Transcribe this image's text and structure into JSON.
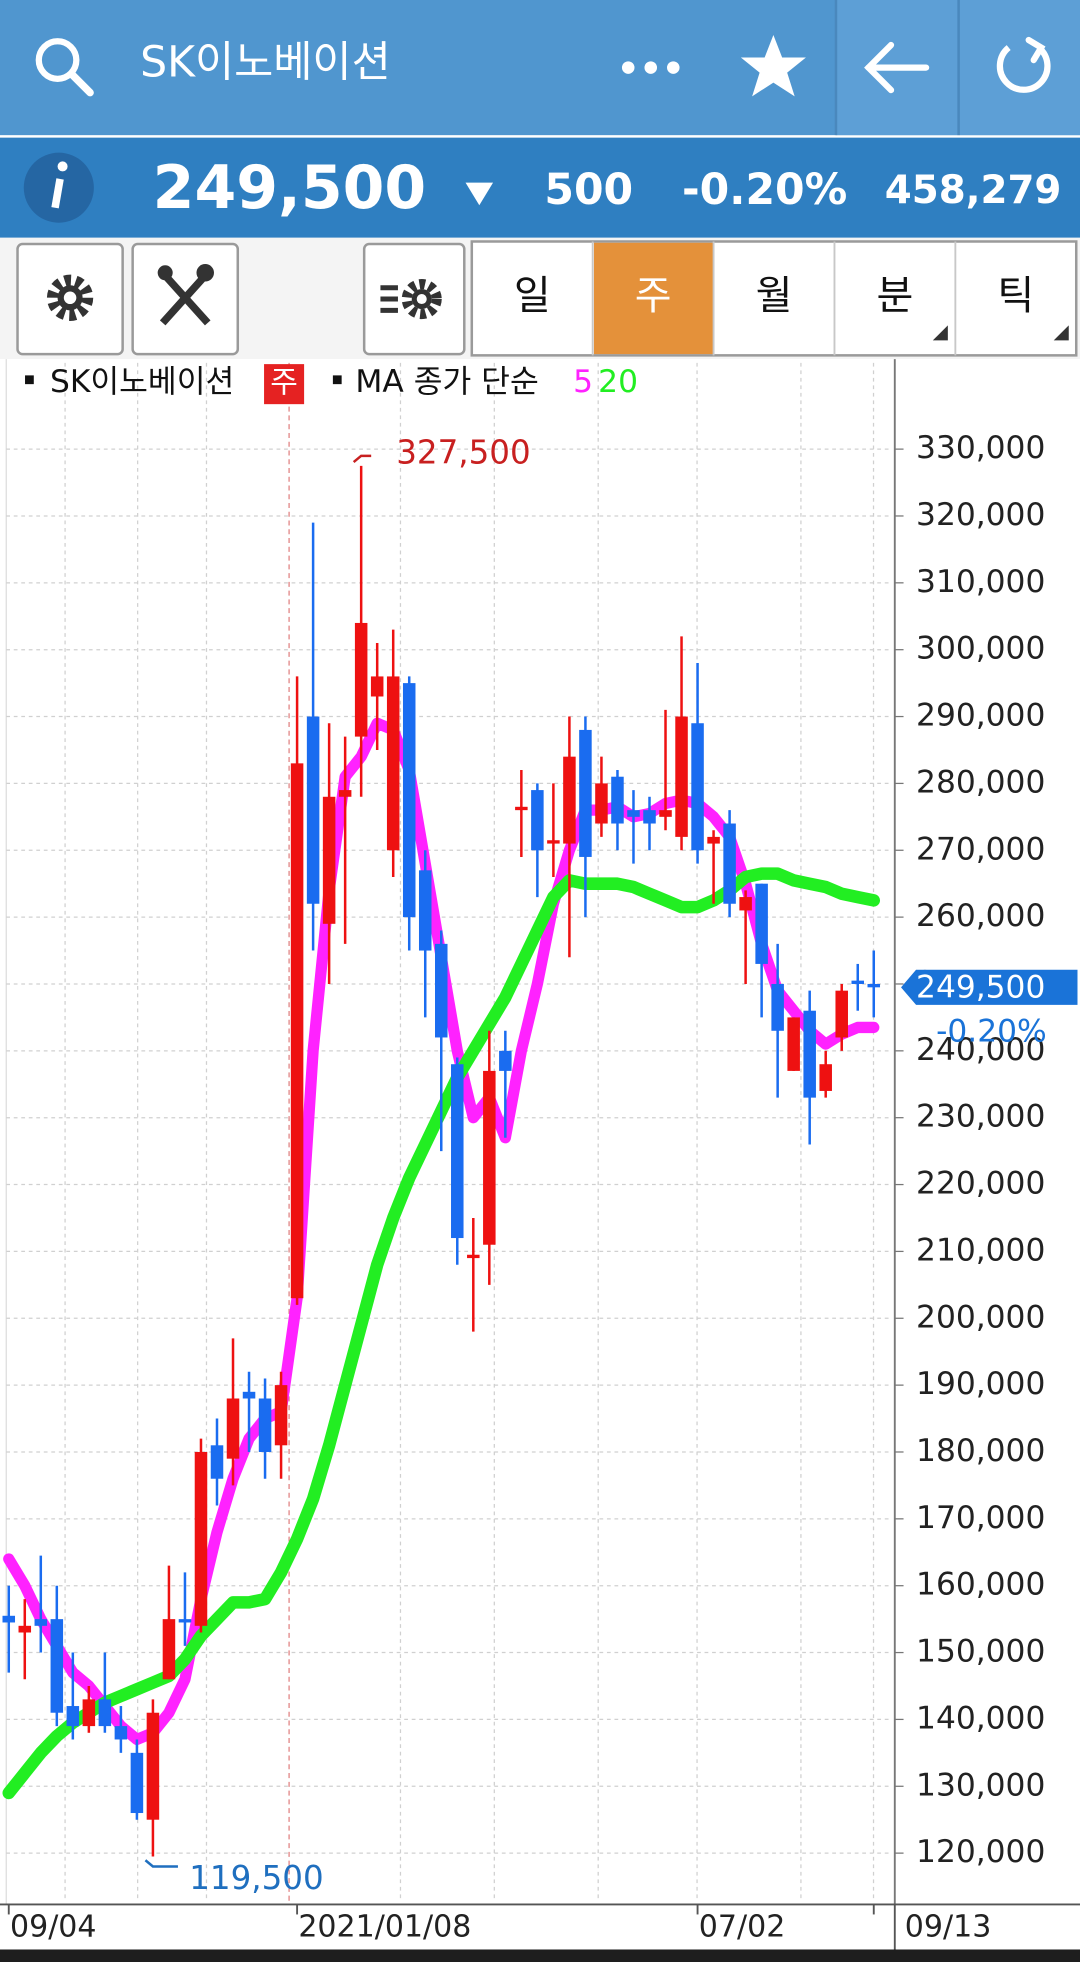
{
  "header": {
    "title": "SK이노베이션",
    "price": "249,500",
    "change": "500",
    "change_pct": "-0.20%",
    "volume": "458,279",
    "tabs": [
      "일",
      "주",
      "월",
      "분",
      "틱"
    ]
  },
  "chart_data": {
    "type": "candlestick",
    "interval": "주",
    "ma_label": "MA 종가 단순",
    "categories": [
      "09/04",
      null,
      null,
      null,
      null,
      null,
      null,
      null,
      null,
      null,
      null,
      null,
      null,
      null,
      null,
      null,
      null,
      null,
      "2021/01/08",
      null,
      null,
      null,
      null,
      null,
      null,
      null,
      null,
      null,
      null,
      null,
      null,
      null,
      null,
      null,
      null,
      null,
      null,
      null,
      null,
      null,
      null,
      null,
      null,
      "07/02",
      null,
      null,
      null,
      null,
      null,
      null,
      null,
      null,
      null,
      null,
      "09/13"
    ],
    "series": [
      {
        "name": "SK이노베이션",
        "up_color": "#ee1111",
        "down_color": "#1a6cf0",
        "open": [
          155500,
          153000,
          155000,
          155000,
          142000,
          139000,
          143000,
          139000,
          135000,
          125000,
          146000,
          155000,
          154000,
          181000,
          179000,
          189000,
          188000,
          181000,
          203000,
          290000,
          259000,
          278000,
          287000,
          293000,
          270000,
          295000,
          267000,
          256000,
          238000,
          209000,
          211000,
          240000,
          276000,
          279000,
          271000,
          271000,
          288000,
          274000,
          281000,
          276000,
          276000,
          275000,
          272000,
          289000,
          271000,
          274000,
          261000,
          265000,
          250000,
          237000,
          246000,
          234000,
          242000,
          250500,
          250000
        ],
        "high": [
          160000,
          158000,
          164500,
          160000,
          150000,
          145000,
          150000,
          142000,
          137000,
          143000,
          163000,
          162000,
          182000,
          185000,
          197000,
          192000,
          191000,
          192000,
          296000,
          319000,
          289000,
          287000,
          327500,
          301000,
          303000,
          296000,
          270000,
          258000,
          239000,
          215000,
          243000,
          243000,
          282000,
          280000,
          280000,
          290000,
          290000,
          284000,
          282000,
          279000,
          278000,
          291000,
          302000,
          298000,
          273000,
          276000,
          264000,
          265000,
          256000,
          245000,
          249000,
          240000,
          250000,
          253000,
          255000
        ],
        "low": [
          147000,
          146000,
          150000,
          139000,
          137000,
          138000,
          138000,
          135000,
          125000,
          119500,
          146000,
          151000,
          153000,
          172000,
          175000,
          180000,
          176000,
          176000,
          202000,
          255000,
          250000,
          256000,
          278000,
          285000,
          266000,
          255000,
          245000,
          225000,
          208000,
          198000,
          205000,
          227000,
          269000,
          263000,
          266000,
          254000,
          260000,
          272000,
          270000,
          268000,
          270000,
          273000,
          270000,
          268000,
          262000,
          260000,
          250000,
          245000,
          233000,
          237000,
          226000,
          233000,
          240000,
          246000,
          245000
        ],
        "close": [
          154500,
          154000,
          154000,
          141000,
          139000,
          143000,
          139000,
          137000,
          126000,
          141000,
          155000,
          154500,
          180000,
          176000,
          188000,
          188000,
          180000,
          190000,
          283000,
          262000,
          278000,
          279000,
          304000,
          296000,
          296000,
          260000,
          255000,
          242000,
          212000,
          209500,
          237000,
          237000,
          276500,
          270000,
          271500,
          284000,
          269000,
          280000,
          274000,
          275000,
          274000,
          276000,
          290000,
          270000,
          272000,
          262000,
          263000,
          253000,
          243000,
          245000,
          233000,
          238000,
          249000,
          250000,
          249500
        ]
      },
      {
        "name": "5",
        "color": "#ff22ff",
        "values": [
          164000,
          160000,
          155000,
          151000,
          147000,
          145000,
          142000,
          139000,
          137000,
          138000,
          141000,
          146000,
          158000,
          168000,
          176000,
          182000,
          185000,
          186000,
          203000,
          240000,
          264000,
          281000,
          284000,
          289000,
          288000,
          282000,
          268000,
          254000,
          240000,
          230000,
          233000,
          227000,
          240000,
          250000,
          262000,
          270000,
          276000,
          276000,
          276500,
          275000,
          275500,
          277000,
          277500,
          277000,
          275000,
          272000,
          265000,
          256000,
          249000,
          246000,
          243000,
          241000,
          242500,
          243500,
          243500
        ]
      },
      {
        "name": "20",
        "color": "#22ee22",
        "values": [
          129000,
          132000,
          135000,
          137500,
          139500,
          141000,
          142500,
          143500,
          144500,
          145500,
          146500,
          149000,
          152500,
          155000,
          157500,
          157500,
          158000,
          162000,
          167000,
          173000,
          181000,
          190000,
          199000,
          208000,
          215000,
          221000,
          226000,
          231000,
          236000,
          240000,
          244000,
          248000,
          253000,
          258000,
          263000,
          265500,
          265000,
          265000,
          265000,
          264500,
          263500,
          262500,
          261500,
          261500,
          262500,
          264000,
          266000,
          266500,
          266500,
          265500,
          265000,
          264500,
          263500,
          263000,
          262500
        ]
      }
    ],
    "ylim": [
      112700,
      342900
    ],
    "yticks": [
      {
        "value": 120000,
        "label": "120,000"
      },
      {
        "value": 130000,
        "label": "130,000"
      },
      {
        "value": 140000,
        "label": "140,000"
      },
      {
        "value": 150000,
        "label": "150,000"
      },
      {
        "value": 160000,
        "label": "160,000"
      },
      {
        "value": 170000,
        "label": "170,000"
      },
      {
        "value": 180000,
        "label": "180,000"
      },
      {
        "value": 190000,
        "label": "190,000"
      },
      {
        "value": 200000,
        "label": "200,000"
      },
      {
        "value": 210000,
        "label": "210,000"
      },
      {
        "value": 220000,
        "label": "220,000"
      },
      {
        "value": 230000,
        "label": "230,000"
      },
      {
        "value": 240000,
        "label": "240,000"
      },
      {
        "value": 250000,
        "label": "250,000"
      },
      {
        "value": 260000,
        "label": "260,000"
      },
      {
        "value": 270000,
        "label": "270,000"
      },
      {
        "value": 280000,
        "label": "280,000"
      },
      {
        "value": 290000,
        "label": "290,000"
      },
      {
        "value": 300000,
        "label": "300,000"
      },
      {
        "value": 310000,
        "label": "310,000"
      },
      {
        "value": 320000,
        "label": "320,000"
      },
      {
        "value": 330000,
        "label": "330,000"
      }
    ],
    "grid": true,
    "max_label": {
      "value": 327500,
      "label": "327,500"
    },
    "min_label": {
      "value": 119500,
      "label": "119,500"
    },
    "last_price": {
      "value": 249500,
      "label": "249,500"
    },
    "last_change": {
      "value": -0.2,
      "label": "-0.20%"
    }
  }
}
